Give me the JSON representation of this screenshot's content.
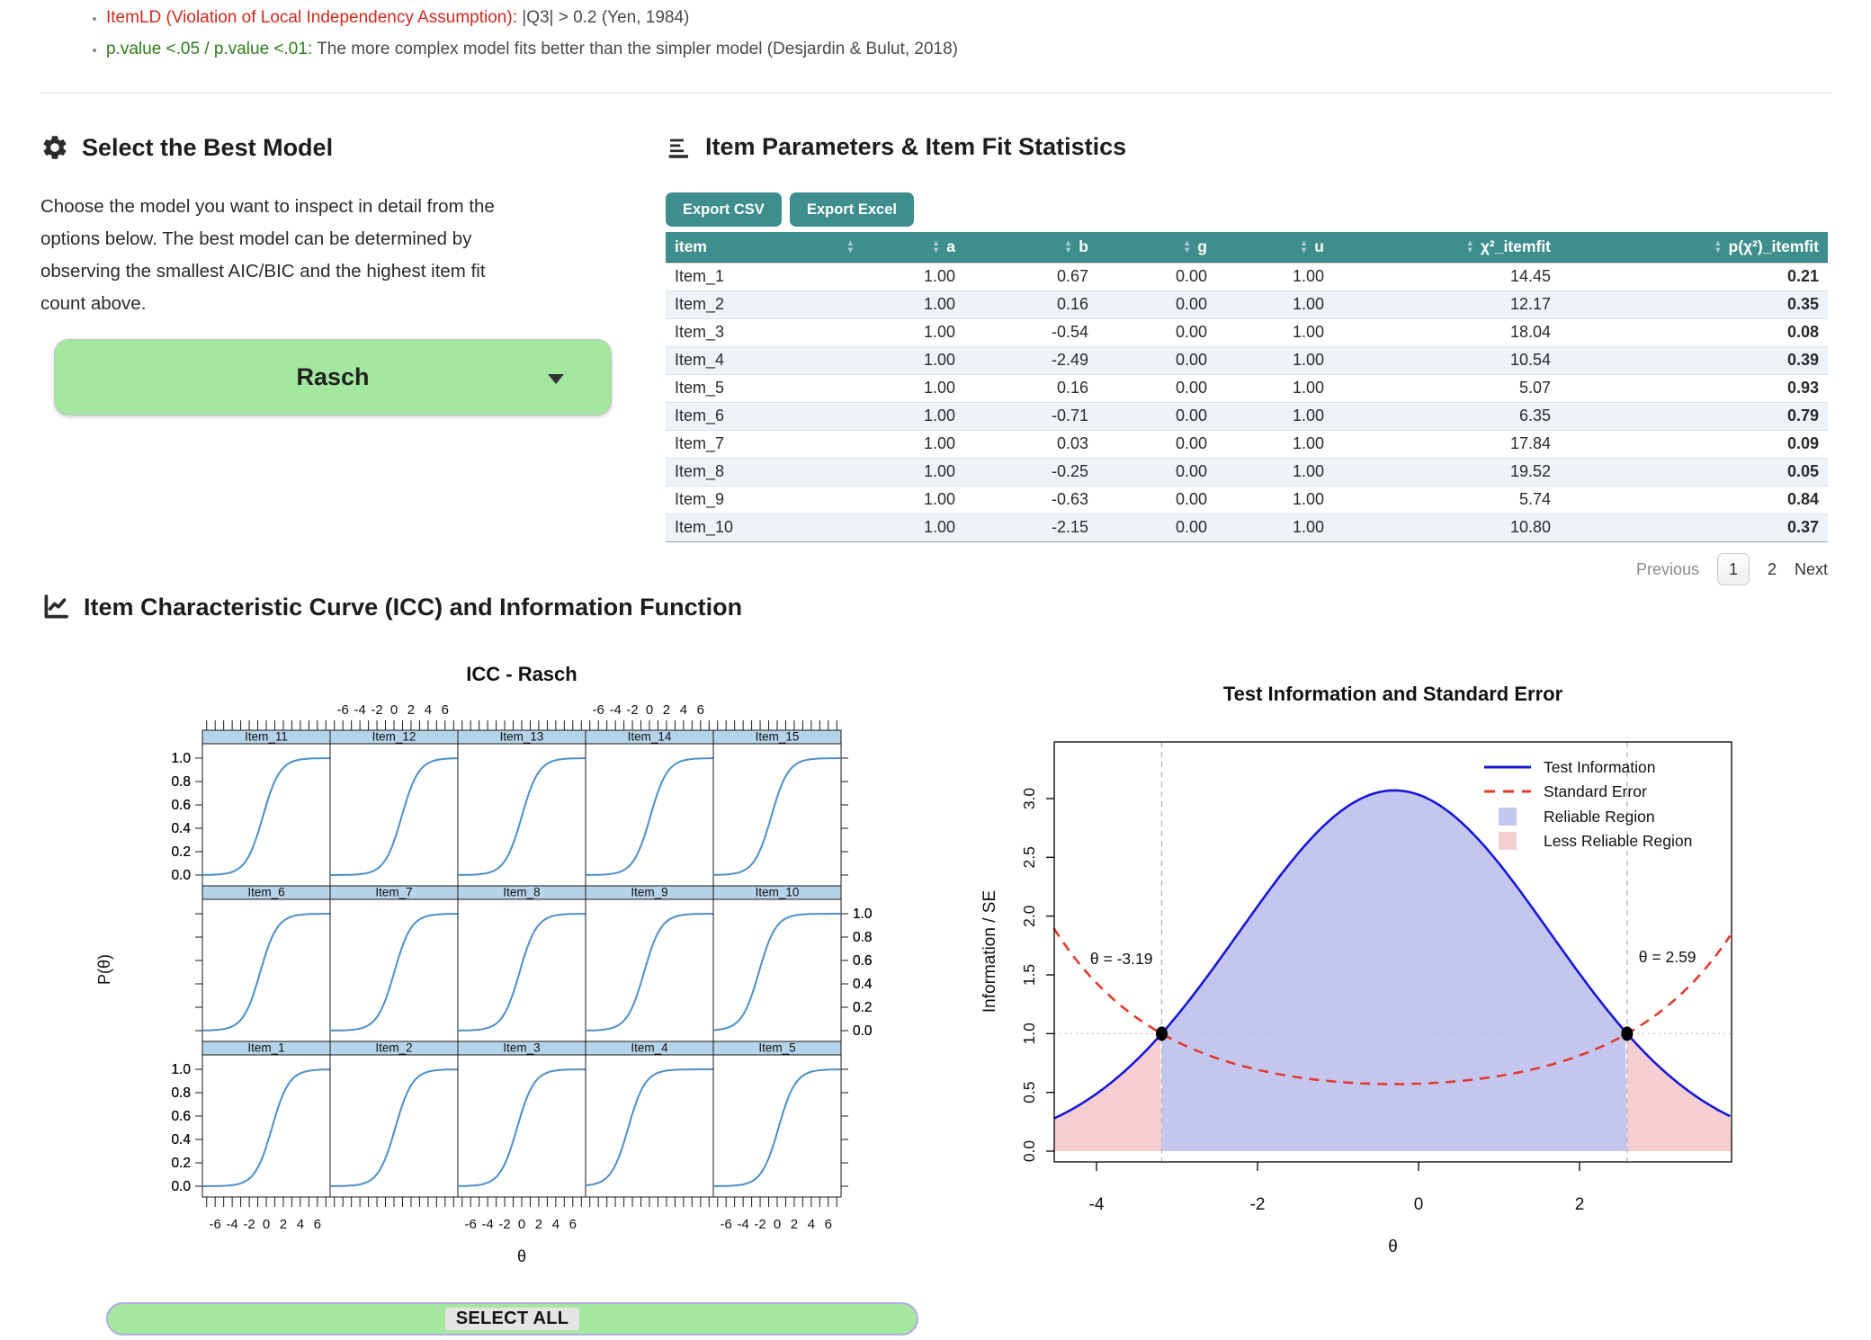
{
  "notes": {
    "item1_label": "ItemLD (Violation of Local Independency Assumption):",
    "item1_text": " |Q3| > 0.2 (Yen, 1984)",
    "item2_label": "p.value <.05 / p.value <.01:",
    "item2_text": " The more complex model fits better than the simpler model (Desjardin & Bulut, 2018)"
  },
  "model_select": {
    "title": "Select the Best Model",
    "description": "Choose the model you want to inspect in detail from the options below. The best model can be determined by observing the smallest AIC/BIC and the highest item fit count above.",
    "selected_model": "Rasch"
  },
  "item_table": {
    "title": "Item Parameters & Item Fit Statistics",
    "buttons": {
      "csv": "Export CSV",
      "excel": "Export Excel"
    },
    "columns": [
      "item",
      "a",
      "b",
      "g",
      "u",
      "χ²_itemfit",
      "p(χ²)_itemfit"
    ],
    "rows": [
      [
        "Item_1",
        "1.00",
        "0.67",
        "0.00",
        "1.00",
        "14.45",
        "0.21"
      ],
      [
        "Item_2",
        "1.00",
        "0.16",
        "0.00",
        "1.00",
        "12.17",
        "0.35"
      ],
      [
        "Item_3",
        "1.00",
        "-0.54",
        "0.00",
        "1.00",
        "18.04",
        "0.08"
      ],
      [
        "Item_4",
        "1.00",
        "-2.49",
        "0.00",
        "1.00",
        "10.54",
        "0.39"
      ],
      [
        "Item_5",
        "1.00",
        "0.16",
        "0.00",
        "1.00",
        "5.07",
        "0.93"
      ],
      [
        "Item_6",
        "1.00",
        "-0.71",
        "0.00",
        "1.00",
        "6.35",
        "0.79"
      ],
      [
        "Item_7",
        "1.00",
        "0.03",
        "0.00",
        "1.00",
        "17.84",
        "0.09"
      ],
      [
        "Item_8",
        "1.00",
        "-0.25",
        "0.00",
        "1.00",
        "19.52",
        "0.05"
      ],
      [
        "Item_9",
        "1.00",
        "-0.63",
        "0.00",
        "1.00",
        "5.74",
        "0.84"
      ],
      [
        "Item_10",
        "1.00",
        "-2.15",
        "0.00",
        "1.00",
        "10.80",
        "0.37"
      ]
    ],
    "pagination": {
      "previous": "Previous",
      "pages": [
        "1",
        "2"
      ],
      "active_page": "1",
      "next": "Next"
    }
  },
  "icc_section_title": "Item Characteristic Curve (ICC) and Information Function",
  "select_all_label": "SELECT ALL",
  "chart_data": [
    {
      "type": "line",
      "id": "icc",
      "title": "ICC - Rasch",
      "xlabel": "θ",
      "ylabel": "P(θ)",
      "model": "Rasch",
      "slope_a": 1.0,
      "x_range": [
        -7.5,
        7.5
      ],
      "x_ticks": [
        -6,
        -4,
        -2,
        0,
        2,
        4,
        6
      ],
      "y_ticks": [
        0.0,
        0.2,
        0.4,
        0.6,
        0.8,
        1.0
      ],
      "panel_layout": [
        [
          "Item_11",
          "Item_12",
          "Item_13",
          "Item_14",
          "Item_15"
        ],
        [
          "Item_6",
          "Item_7",
          "Item_8",
          "Item_9",
          "Item_10"
        ],
        [
          "Item_1",
          "Item_2",
          "Item_3",
          "Item_4",
          "Item_5"
        ]
      ],
      "items": [
        {
          "name": "Item_1",
          "b": 0.67
        },
        {
          "name": "Item_2",
          "b": 0.16
        },
        {
          "name": "Item_3",
          "b": -0.54
        },
        {
          "name": "Item_4",
          "b": -2.49
        },
        {
          "name": "Item_5",
          "b": 0.16
        },
        {
          "name": "Item_6",
          "b": -0.71
        },
        {
          "name": "Item_7",
          "b": 0.03
        },
        {
          "name": "Item_8",
          "b": -0.25
        },
        {
          "name": "Item_9",
          "b": -0.63
        },
        {
          "name": "Item_10",
          "b": -2.15
        },
        {
          "name": "Item_11",
          "b": -0.4
        },
        {
          "name": "Item_12",
          "b": 0.9
        },
        {
          "name": "Item_13",
          "b": 0.0
        },
        {
          "name": "Item_14",
          "b": 0.1
        },
        {
          "name": "Item_15",
          "b": -0.7
        }
      ],
      "strip_color": "#b5d4ea",
      "curve_color": "#4c8fc9"
    },
    {
      "type": "area",
      "id": "tif",
      "title": "Test Information and Standard Error",
      "xlabel": "θ",
      "ylabel": "Information / SE",
      "x_range": [
        -4.53,
        3.89
      ],
      "ylim": [
        0,
        3.48
      ],
      "x_ticks": [
        -4,
        -2,
        0,
        2
      ],
      "y_ticks": [
        0.0,
        0.5,
        1.0,
        1.5,
        2.0,
        2.5,
        3.0
      ],
      "series": [
        {
          "name": "Test Information",
          "style": "solid",
          "color": "#1717d6",
          "peak": 3.07,
          "center": -0.3,
          "sigma": 1.93,
          "x": [
            -4,
            -3,
            -2,
            -1,
            0,
            1,
            2,
            3
          ],
          "y": [
            0.49,
            1.15,
            2.08,
            2.87,
            3.03,
            2.45,
            1.51,
            0.71
          ]
        },
        {
          "name": "Standard Error",
          "style": "dashed",
          "color": "#e23b2e",
          "formula": "1/sqrt(TestInformation)",
          "x": [
            -4,
            -3,
            -2,
            -1,
            0,
            1,
            2,
            3
          ],
          "y": [
            1.43,
            0.93,
            0.69,
            0.59,
            0.57,
            0.64,
            0.81,
            1.19
          ]
        }
      ],
      "cutoffs": [
        {
          "label": "θ = -3.19",
          "theta": -3.19
        },
        {
          "label": "θ = 2.59",
          "theta": 2.59
        }
      ],
      "intersection_points": [
        {
          "x": -3.19,
          "y": 1.0
        },
        {
          "x": 2.59,
          "y": 1.0
        }
      ],
      "reference_line_y": 1.0,
      "regions": [
        {
          "name": "Reliable Region",
          "color": "#c5c6f0"
        },
        {
          "name": "Less Reliable Region",
          "color": "#f5ced2"
        }
      ],
      "legend": [
        "Test Information",
        "Standard Error",
        "Reliable Region",
        "Less Reliable Region"
      ],
      "legend_position": "top-right"
    }
  ]
}
